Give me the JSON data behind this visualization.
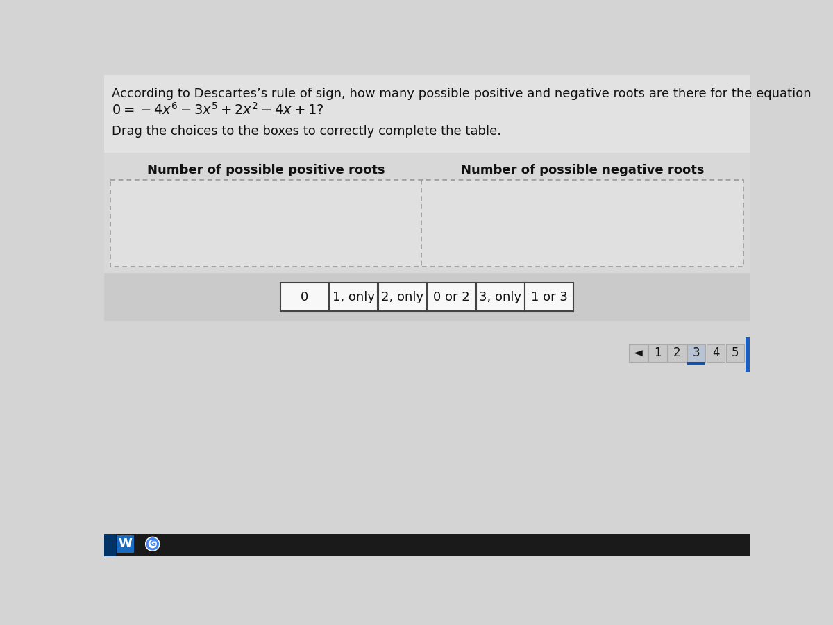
{
  "bg_color": "#d4d4d4",
  "top_bg_color": "#e2e2e2",
  "choices_band_color": "#cacaca",
  "title_line1": "According to Descartes’s rule of sign, how many possible positive and negative roots are there for the equation",
  "title_line2_plain": "0 = −4x⁶ − 3x⁵ + 2x² − 4x + 1?",
  "subtitle": "Drag the choices to the boxes to correctly complete the table.",
  "col1_header": "Number of possible positive roots",
  "col2_header": "Number of possible negative roots",
  "choices": [
    "0",
    "1, only",
    "2, only",
    "0 or 2",
    "3, only",
    "1 or 3"
  ],
  "pagination": [
    "◄",
    "1",
    "2",
    "3",
    "4",
    "5"
  ],
  "active_page": "3",
  "choice_box_color": "#f8f8f8",
  "choice_border_color": "#444444",
  "page_box_color": "#c8c8c8",
  "active_page_color": "#b8c4d4",
  "right_edge_color": "#1a5fbf",
  "blue_indicator_color": "#1a50a0",
  "font_size_title": 13,
  "font_size_header": 13,
  "font_size_choice": 13,
  "font_size_page": 12,
  "taskbar_color": "#1a1a1a",
  "taskbar_icon_color": "#1a6bbf"
}
